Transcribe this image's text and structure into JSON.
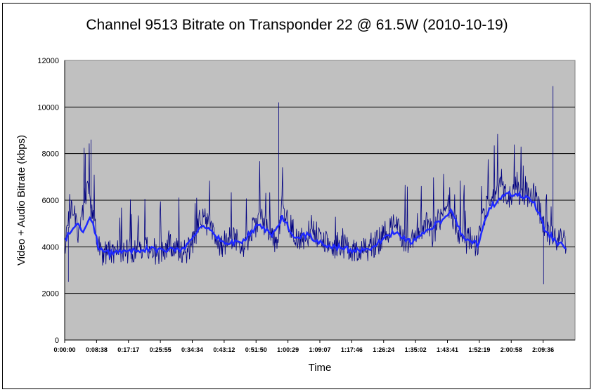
{
  "chart_data": {
    "type": "line",
    "title": "Channel 9513 Bitrate on Transponder 22 @ 61.5W (2010-10-19)",
    "xlabel": "Time",
    "ylabel": "Video + Audio Bitrate (kbps)",
    "ylim": [
      0,
      12000
    ],
    "y_ticks": [
      0,
      2000,
      4000,
      6000,
      8000,
      10000,
      12000
    ],
    "x_ticks": [
      "0:00:00",
      "0:08:38",
      "0:17:17",
      "0:25:55",
      "0:34:34",
      "0:43:12",
      "0:51:50",
      "1:00:29",
      "1:09:07",
      "1:17:46",
      "1:26:24",
      "1:35:02",
      "1:43:41",
      "1:52:19",
      "2:00:58",
      "2:09:36"
    ],
    "x_range_seconds": [
      0,
      8152
    ],
    "grid": "horizontal",
    "legend": "none",
    "colors": {
      "raw": "#000080",
      "smoothed": "#1e28ff",
      "plot_bg": "#c0c0c0"
    },
    "series": [
      {
        "role": "raw",
        "approx_points": [
          [
            "0:00:00",
            4100
          ],
          [
            "0:02:00",
            5600
          ],
          [
            "0:04:00",
            4300
          ],
          [
            "0:06:00",
            6600
          ],
          [
            "0:08:00",
            4700
          ],
          [
            "0:10:00",
            3700
          ],
          [
            "0:12:00",
            3600
          ],
          [
            "0:14:00",
            3800
          ],
          [
            "0:16:00",
            3700
          ],
          [
            "0:18:00",
            3800
          ],
          [
            "0:20:00",
            4000
          ],
          [
            "0:22:00",
            3800
          ],
          [
            "0:24:00",
            3700
          ],
          [
            "0:26:00",
            3800
          ],
          [
            "0:28:00",
            4100
          ],
          [
            "0:30:00",
            3800
          ],
          [
            "0:32:00",
            3700
          ],
          [
            "0:34:00",
            4000
          ],
          [
            "0:36:00",
            5200
          ],
          [
            "0:38:00",
            4900
          ],
          [
            "0:40:00",
            4300
          ],
          [
            "0:42:00",
            4000
          ],
          [
            "0:44:00",
            4300
          ],
          [
            "0:46:00",
            4100
          ],
          [
            "0:48:00",
            4000
          ],
          [
            "0:50:00",
            4700
          ],
          [
            "0:52:00",
            5100
          ],
          [
            "0:54:00",
            4800
          ],
          [
            "0:56:00",
            4000
          ],
          [
            "0:58:00",
            5600
          ],
          [
            "1:00:00",
            4800
          ],
          [
            "1:02:00",
            4200
          ],
          [
            "1:04:00",
            4200
          ],
          [
            "1:06:00",
            4800
          ],
          [
            "1:08:00",
            4200
          ],
          [
            "1:10:00",
            4000
          ],
          [
            "1:12:00",
            4000
          ],
          [
            "1:14:00",
            3900
          ],
          [
            "1:16:00",
            3900
          ],
          [
            "1:18:00",
            3800
          ],
          [
            "1:20:00",
            3800
          ],
          [
            "1:22:00",
            4000
          ],
          [
            "1:24:00",
            4200
          ],
          [
            "1:26:00",
            4600
          ],
          [
            "1:28:00",
            4800
          ],
          [
            "1:30:00",
            4300
          ],
          [
            "1:32:00",
            4000
          ],
          [
            "1:34:00",
            4600
          ],
          [
            "1:36:00",
            4900
          ],
          [
            "1:38:00",
            4400
          ],
          [
            "1:40:00",
            5200
          ],
          [
            "1:42:00",
            5800
          ],
          [
            "1:44:00",
            4900
          ],
          [
            "1:46:00",
            4200
          ],
          [
            "1:48:00",
            4200
          ],
          [
            "1:50:00",
            4000
          ],
          [
            "1:52:00",
            5400
          ],
          [
            "1:54:00",
            6200
          ],
          [
            "1:56:00",
            6400
          ],
          [
            "1:58:00",
            6100
          ],
          [
            "2:00:00",
            6500
          ],
          [
            "2:02:00",
            6000
          ],
          [
            "2:04:00",
            6300
          ],
          [
            "2:06:00",
            5800
          ],
          [
            "2:08:00",
            4500
          ],
          [
            "2:10:00",
            4400
          ],
          [
            "2:12:00",
            4300
          ],
          [
            "2:13:30",
            4000
          ]
        ],
        "notable_peaks": [
          [
            "0:05:30",
            8000
          ],
          [
            "0:07:00",
            8600
          ],
          [
            "0:57:00",
            10200
          ],
          [
            "2:10:00",
            10900
          ]
        ],
        "notable_lows": [
          [
            "0:01:00",
            2500
          ],
          [
            "2:07:30",
            2400
          ]
        ]
      },
      {
        "role": "smoothed",
        "approx_points": [
          [
            "0:00:00",
            4300
          ],
          [
            "0:03:00",
            5000
          ],
          [
            "0:05:00",
            4600
          ],
          [
            "0:07:00",
            5300
          ],
          [
            "0:09:00",
            4000
          ],
          [
            "0:12:00",
            3700
          ],
          [
            "0:17:00",
            3800
          ],
          [
            "0:22:00",
            3900
          ],
          [
            "0:27:00",
            3850
          ],
          [
            "0:32:00",
            3900
          ],
          [
            "0:36:00",
            4900
          ],
          [
            "0:39:00",
            4800
          ],
          [
            "0:42:00",
            4100
          ],
          [
            "0:47:00",
            4200
          ],
          [
            "0:52:00",
            5000
          ],
          [
            "0:55:00",
            4500
          ],
          [
            "0:58:00",
            5300
          ],
          [
            "1:01:00",
            4400
          ],
          [
            "1:05:00",
            4500
          ],
          [
            "1:09:00",
            4100
          ],
          [
            "1:15:00",
            3900
          ],
          [
            "1:20:00",
            3800
          ],
          [
            "1:24:00",
            4200
          ],
          [
            "1:28:00",
            4700
          ],
          [
            "1:32:00",
            4200
          ],
          [
            "1:36:00",
            4700
          ],
          [
            "1:40:00",
            5100
          ],
          [
            "1:43:00",
            5600
          ],
          [
            "1:46:00",
            4400
          ],
          [
            "1:50:00",
            4100
          ],
          [
            "1:53:00",
            5600
          ],
          [
            "1:57:00",
            6300
          ],
          [
            "2:01:00",
            6300
          ],
          [
            "2:05:00",
            5900
          ],
          [
            "2:08:00",
            4700
          ],
          [
            "2:11:00",
            4200
          ],
          [
            "2:13:30",
            4000
          ]
        ]
      }
    ]
  }
}
